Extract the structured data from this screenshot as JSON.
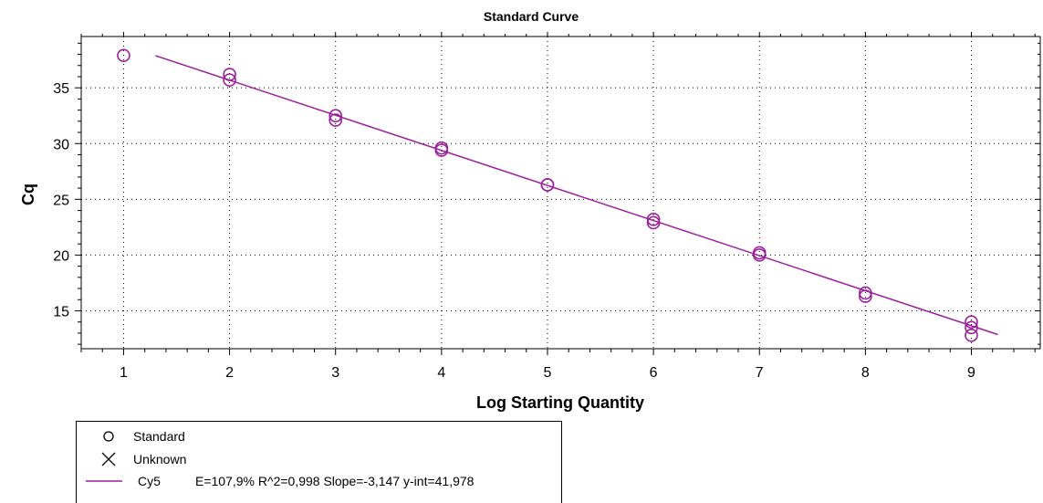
{
  "chart_data": {
    "type": "scatter",
    "title": "Standard Curve",
    "xlabel": "Log Starting Quantity",
    "ylabel": "Cq",
    "xlim": [
      0.6,
      9.65
    ],
    "ylim": [
      11.6,
      39.6
    ],
    "x_ticks": [
      1,
      2,
      3,
      4,
      5,
      6,
      7,
      8,
      9
    ],
    "y_ticks": [
      15,
      20,
      25,
      30,
      35
    ],
    "grid": true,
    "legend_position": "bottom-left",
    "series": [
      {
        "name": "Standard",
        "marker": "circle",
        "color": "#9b1f9b",
        "points": [
          [
            1,
            37.9
          ],
          [
            2,
            36.2
          ],
          [
            2,
            35.7
          ],
          [
            3,
            32.5
          ],
          [
            3,
            32.1
          ],
          [
            4,
            29.6
          ],
          [
            4,
            29.4
          ],
          [
            5,
            26.3
          ],
          [
            5,
            26.3
          ],
          [
            6,
            23.2
          ],
          [
            6,
            22.9
          ],
          [
            7,
            20.2
          ],
          [
            7,
            20.0
          ],
          [
            8,
            16.6
          ],
          [
            8,
            16.3
          ],
          [
            9,
            14.0
          ],
          [
            9,
            13.5
          ],
          [
            9,
            12.8
          ]
        ]
      },
      {
        "name": "Unknown",
        "marker": "x",
        "color": "#000000",
        "points": []
      }
    ],
    "fit_line": {
      "name": "Cy5",
      "color": "#9b1f9b",
      "stats": "E=107,9% R^2=0,998 Slope=-3,147 y-int=41,978",
      "slope": -3.147,
      "intercept": 41.978,
      "x_range": [
        1.3,
        9.25
      ]
    }
  }
}
